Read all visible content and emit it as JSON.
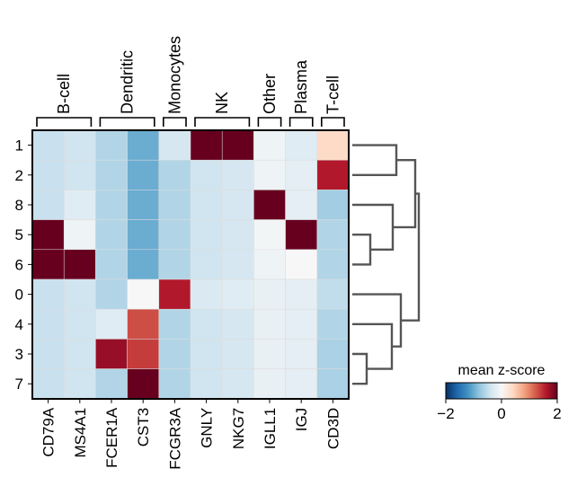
{
  "chart_data": {
    "type": "heatmap",
    "columns": [
      "CD79A",
      "MS4A1",
      "FCER1A",
      "CST3",
      "FCGR3A",
      "GNLY",
      "NKG7",
      "IGLL1",
      "IGJ",
      "CD3D"
    ],
    "rows": [
      "1",
      "2",
      "8",
      "5",
      "6",
      "0",
      "4",
      "3",
      "7"
    ],
    "groups": [
      {
        "label": "B-cell",
        "start": 0,
        "end": 1
      },
      {
        "label": "Dendritic",
        "start": 2,
        "end": 3
      },
      {
        "label": "Monocytes",
        "start": 4,
        "end": 4
      },
      {
        "label": "NK",
        "start": 5,
        "end": 6
      },
      {
        "label": "Other",
        "start": 7,
        "end": 7
      },
      {
        "label": "Plasma",
        "start": 8,
        "end": 8
      },
      {
        "label": "T-cell",
        "start": 9,
        "end": 9
      }
    ],
    "values": [
      [
        -0.45,
        -0.4,
        -0.6,
        -1.0,
        -0.35,
        2.0,
        2.0,
        -0.1,
        -0.25,
        0.4
      ],
      [
        -0.45,
        -0.4,
        -0.6,
        -1.0,
        -0.6,
        -0.4,
        -0.35,
        -0.1,
        -0.2,
        1.6
      ],
      [
        -0.45,
        -0.25,
        -0.6,
        -1.0,
        -0.6,
        -0.4,
        -0.35,
        2.0,
        -0.2,
        -0.7
      ],
      [
        2.0,
        -0.1,
        -0.6,
        -1.0,
        -0.6,
        -0.4,
        -0.35,
        -0.05,
        2.0,
        -0.6
      ],
      [
        2.0,
        2.0,
        -0.6,
        -1.0,
        -0.6,
        -0.4,
        -0.35,
        -0.1,
        0.0,
        -0.6
      ],
      [
        -0.45,
        -0.4,
        -0.6,
        0.0,
        1.6,
        -0.3,
        -0.25,
        -0.15,
        -0.2,
        -0.5
      ],
      [
        -0.45,
        -0.4,
        -0.25,
        1.3,
        -0.6,
        -0.4,
        -0.35,
        -0.15,
        -0.2,
        -0.6
      ],
      [
        -0.45,
        -0.4,
        1.75,
        1.4,
        -0.6,
        -0.4,
        -0.35,
        -0.15,
        -0.2,
        -0.65
      ],
      [
        -0.45,
        -0.4,
        -0.6,
        2.0,
        -0.6,
        -0.4,
        -0.35,
        -0.15,
        -0.2,
        -0.65
      ]
    ],
    "colormap": "RdBu_r",
    "vmin": -2,
    "vmax": 2,
    "colorbar": {
      "title": "mean z-score",
      "ticks": [
        "−2",
        "0",
        "2"
      ],
      "tick_values": [
        -2,
        0,
        2
      ]
    },
    "dendrogram": {
      "side": "right",
      "color": "#555555"
    }
  }
}
